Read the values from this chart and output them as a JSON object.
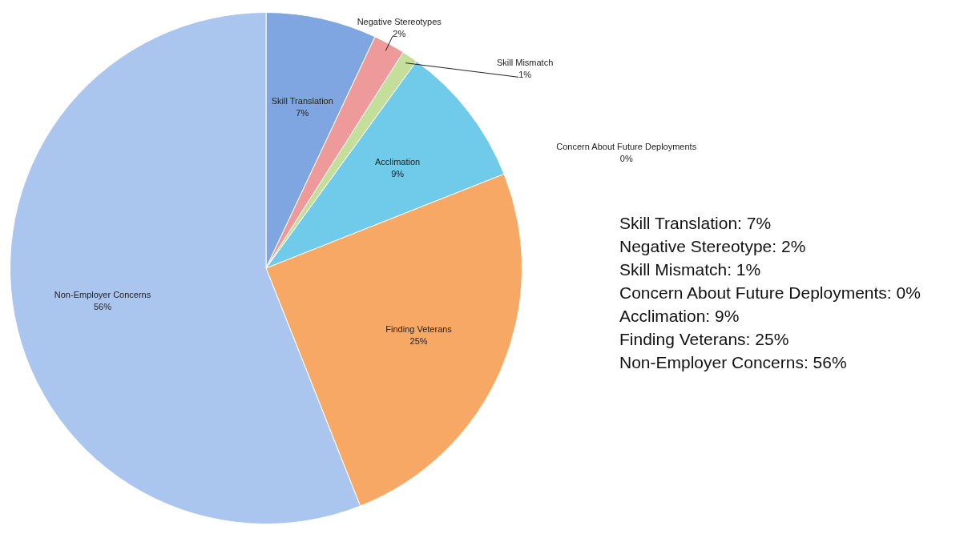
{
  "chart_data": {
    "type": "pie",
    "categories": [
      "Skill Translation",
      "Negative Stereotypes",
      "Skill Mismatch",
      "Concern About Future Deployments",
      "Acclimation",
      "Finding Veterans",
      "Non-Employer Concerns"
    ],
    "values": [
      7,
      2,
      1,
      0,
      9,
      25,
      56
    ],
    "value_labels": [
      "7%",
      "2%",
      "1%",
      "0%",
      "9%",
      "25%",
      "56%"
    ],
    "colors": [
      "#7fa6e0",
      "#ee9a9a",
      "#c3df9a",
      "#d9d9d9",
      "#6fcbe9",
      "#f7a864",
      "#aac6ee"
    ],
    "legend": false,
    "annotations": [
      "Skill Translation: 7%",
      "Negative Stereotype: 2%",
      "Skill Mismatch: 1%",
      "Concern About Future Deployments: 0%",
      "Acclimation: 9%",
      "Finding Veterans: 25%",
      "Non-Employer Concerns: 56%"
    ]
  }
}
